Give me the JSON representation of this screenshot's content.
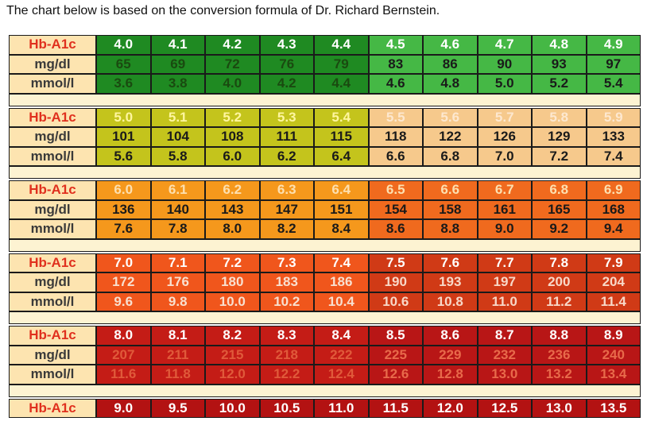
{
  "caption": "The chart below is based on the conversion formula of Dr. Richard Bernstein.",
  "blocks": [
    {
      "rows": [
        {
          "label": "Hb-A1c",
          "cells": [
            "4.0",
            "4.1",
            "4.2",
            "4.3",
            "4.4",
            "4.5",
            "4.6",
            "4.7",
            "4.8",
            "4.9"
          ]
        },
        {
          "label": "mg/dl",
          "cells": [
            "65",
            "69",
            "72",
            "76",
            "79",
            "83",
            "86",
            "90",
            "93",
            "97"
          ]
        },
        {
          "label": "mmol/l",
          "cells": [
            "3.6",
            "3.8",
            "4.0",
            "4.2",
            "4.4",
            "4.6",
            "4.8",
            "5.0",
            "5.2",
            "5.4"
          ]
        }
      ]
    },
    {
      "rows": [
        {
          "label": "Hb-A1c",
          "cells": [
            "5.0",
            "5.1",
            "5.2",
            "5.3",
            "5.4",
            "5.5",
            "5.6",
            "5.7",
            "5.8",
            "5.9"
          ]
        },
        {
          "label": "mg/dl",
          "cells": [
            "101",
            "104",
            "108",
            "111",
            "115",
            "118",
            "122",
            "126",
            "129",
            "133"
          ]
        },
        {
          "label": "mmol/l",
          "cells": [
            "5.6",
            "5.8",
            "6.0",
            "6.2",
            "6.4",
            "6.6",
            "6.8",
            "7.0",
            "7.2",
            "7.4"
          ]
        }
      ]
    },
    {
      "rows": [
        {
          "label": "Hb-A1c",
          "cells": [
            "6.0",
            "6.1",
            "6.2",
            "6.3",
            "6.4",
            "6.5",
            "6.6",
            "6.7",
            "6.8",
            "6.9"
          ]
        },
        {
          "label": "mg/dl",
          "cells": [
            "136",
            "140",
            "143",
            "147",
            "151",
            "154",
            "158",
            "161",
            "165",
            "168"
          ]
        },
        {
          "label": "mmol/l",
          "cells": [
            "7.6",
            "7.8",
            "8.0",
            "8.2",
            "8.4",
            "8.6",
            "8.8",
            "9.0",
            "9.2",
            "9.4"
          ]
        }
      ]
    },
    {
      "rows": [
        {
          "label": "Hb-A1c",
          "cells": [
            "7.0",
            "7.1",
            "7.2",
            "7.3",
            "7.4",
            "7.5",
            "7.6",
            "7.7",
            "7.8",
            "7.9"
          ]
        },
        {
          "label": "mg/dl",
          "cells": [
            "172",
            "176",
            "180",
            "183",
            "186",
            "190",
            "193",
            "197",
            "200",
            "204"
          ]
        },
        {
          "label": "mmol/l",
          "cells": [
            "9.6",
            "9.8",
            "10.0",
            "10.2",
            "10.4",
            "10.6",
            "10.8",
            "11.0",
            "11.2",
            "11.4"
          ]
        }
      ]
    },
    {
      "rows": [
        {
          "label": "Hb-A1c",
          "cells": [
            "8.0",
            "8.1",
            "8.2",
            "8.3",
            "8.4",
            "8.5",
            "8.6",
            "8.7",
            "8.8",
            "8.9"
          ]
        },
        {
          "label": "mg/dl",
          "cells": [
            "207",
            "211",
            "215",
            "218",
            "222",
            "225",
            "229",
            "232",
            "236",
            "240"
          ]
        },
        {
          "label": "mmol/l",
          "cells": [
            "11.6",
            "11.8",
            "12.0",
            "12.2",
            "12.4",
            "12.6",
            "12.8",
            "13.0",
            "13.2",
            "13.4"
          ]
        }
      ]
    },
    {
      "rows": [
        {
          "label": "Hb-A1c",
          "cells": [
            "9.0",
            "9.5",
            "10.0",
            "10.5",
            "11.0",
            "11.5",
            "12.0",
            "12.5",
            "13.0",
            "13.5"
          ]
        }
      ]
    }
  ]
}
